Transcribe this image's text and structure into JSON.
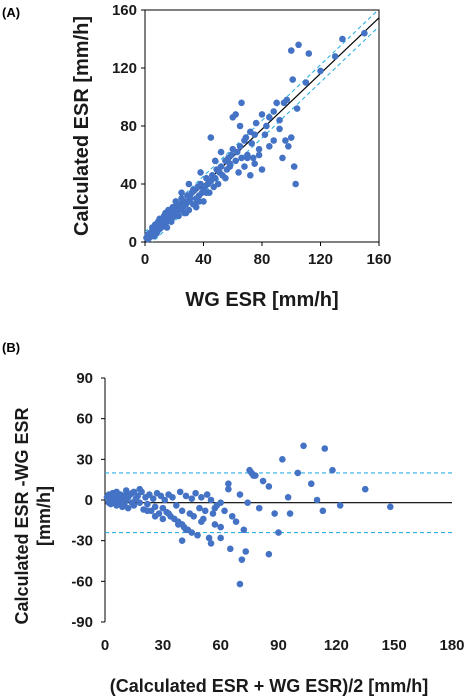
{
  "chart_data": [
    {
      "panel": "(A)",
      "type": "scatter",
      "xlabel": "WG ESR [mm/h]",
      "ylabel": "Calculated ESR [mm/h]",
      "xlim": [
        0,
        160
      ],
      "ylim": [
        0,
        160
      ],
      "xticks": [
        "0",
        "40",
        "80",
        "120",
        "160"
      ],
      "yticks": [
        "0",
        "40",
        "80",
        "120",
        "160"
      ],
      "grid": false,
      "point_color": "#4472c4",
      "regression_line": {
        "slope": 0.96,
        "intercept": 1,
        "color": "#000000"
      },
      "confidence_band": {
        "offset": 6,
        "color": "#2eb0e0",
        "style": "dashed"
      },
      "series": [
        {
          "x": [
            1,
            2,
            2,
            3,
            3,
            3,
            4,
            4,
            5,
            5,
            5,
            6,
            6,
            6,
            7,
            7,
            8,
            8,
            9,
            9,
            10,
            10,
            10,
            11,
            11,
            12,
            12,
            13,
            13,
            14,
            14,
            15,
            15,
            15,
            16,
            16,
            17,
            17,
            18,
            18,
            19,
            19,
            20,
            20,
            21,
            22,
            22,
            23,
            23,
            24,
            25,
            25,
            26,
            27,
            27,
            28,
            29,
            30,
            30,
            31,
            32,
            33,
            34,
            35,
            35,
            36,
            37,
            37,
            38,
            39,
            40,
            40,
            41,
            42,
            43,
            44,
            45,
            46,
            47,
            48,
            49,
            50,
            51,
            52,
            53,
            55,
            56,
            57,
            58,
            59,
            60,
            62,
            63,
            64,
            65,
            66,
            68,
            69,
            70,
            72,
            73,
            75,
            76,
            78,
            80,
            82,
            83,
            85,
            88,
            90,
            92,
            94,
            96,
            98,
            100,
            101,
            102,
            103,
            104,
            105,
            68,
            70,
            72,
            75,
            78,
            80,
            85,
            88,
            92,
            95,
            97,
            100,
            110,
            112,
            120,
            130,
            135,
            150,
            60,
            65,
            48,
            52,
            55,
            58,
            30,
            33,
            36,
            25,
            28,
            22,
            45,
            42,
            38,
            62,
            66,
            74
          ],
          "y": [
            3,
            2,
            5,
            4,
            6,
            3,
            6,
            4,
            8,
            5,
            10,
            7,
            9,
            4,
            8,
            12,
            10,
            6,
            14,
            8,
            12,
            9,
            16,
            13,
            10,
            14,
            11,
            18,
            12,
            16,
            20,
            14,
            18,
            10,
            16,
            22,
            15,
            19,
            20,
            14,
            17,
            24,
            18,
            22,
            28,
            20,
            25,
            23,
            18,
            26,
            22,
            30,
            24,
            28,
            20,
            26,
            32,
            28,
            22,
            30,
            34,
            26,
            36,
            30,
            24,
            38,
            32,
            28,
            40,
            34,
            36,
            28,
            38,
            44,
            40,
            34,
            42,
            46,
            38,
            44,
            50,
            40,
            48,
            52,
            46,
            56,
            50,
            58,
            54,
            60,
            64,
            56,
            62,
            48,
            66,
            58,
            70,
            72,
            60,
            76,
            68,
            74,
            82,
            64,
            88,
            74,
            80,
            86,
            90,
            96,
            78,
            58,
            70,
            66,
            132,
            112,
            52,
            40,
            92,
            136,
            52,
            58,
            46,
            54,
            60,
            50,
            66,
            70,
            84,
            96,
            98,
            72,
            110,
            130,
            118,
            128,
            140,
            144,
            86,
            80,
            56,
            62,
            44,
            52,
            40,
            36,
            28,
            34,
            20,
            26,
            72,
            34,
            48,
            88,
            96,
            58
          ]
        }
      ]
    },
    {
      "panel": "(B)",
      "type": "scatter",
      "xlabel": "(Calculated ESR + WG ESR)/2 [mm/h]",
      "ylabel": "Calculated ESR -WG ESR [mm/h]",
      "xlim": [
        0,
        180
      ],
      "ylim": [
        -90,
        90
      ],
      "xticks": [
        "0",
        "30",
        "60",
        "90",
        "120",
        "150",
        "180"
      ],
      "yticks": [
        "90",
        "60",
        "30",
        "0",
        "-30",
        "-60",
        "-90"
      ],
      "grid": false,
      "point_color": "#4472c4",
      "mean_line": {
        "value": -2,
        "color": "#000000"
      },
      "limits_of_agreement": {
        "upper": 20,
        "lower": -24,
        "color": "#2eb0e0",
        "style": "dashed"
      },
      "series": [
        {
          "x": [
            1,
            2,
            2,
            3,
            3,
            4,
            4,
            5,
            5,
            6,
            6,
            7,
            7,
            8,
            8,
            9,
            9,
            10,
            10,
            11,
            11,
            12,
            12,
            13,
            14,
            14,
            15,
            16,
            17,
            18,
            19,
            20,
            21,
            22,
            23,
            24,
            25,
            26,
            27,
            28,
            29,
            30,
            31,
            32,
            33,
            34,
            35,
            36,
            37,
            38,
            39,
            40,
            40,
            41,
            42,
            43,
            44,
            45,
            46,
            47,
            48,
            49,
            50,
            51,
            52,
            53,
            54,
            55,
            56,
            57,
            58,
            60,
            62,
            64,
            66,
            68,
            70,
            72,
            74,
            76,
            78,
            80,
            82,
            85,
            88,
            92,
            96,
            100,
            103,
            107,
            110,
            113,
            114,
            118,
            122,
            135,
            148,
            70,
            71,
            73,
            75,
            77,
            40,
            45,
            55,
            60,
            65,
            38,
            42,
            50,
            26,
            30,
            33,
            18,
            22,
            15,
            12,
            85,
            90,
            95,
            64,
            60,
            57
          ],
          "y": [
            2,
            -2,
            4,
            0,
            -3,
            5,
            1,
            -1,
            3,
            -4,
            6,
            2,
            -2,
            4,
            -1,
            1,
            -5,
            3,
            -3,
            7,
            0,
            2,
            -6,
            4,
            -2,
            5,
            -4,
            1,
            3,
            -2,
            6,
            -7,
            2,
            -3,
            4,
            -8,
            1,
            -5,
            5,
            -10,
            3,
            -6,
            0,
            -9,
            4,
            -12,
            2,
            -14,
            -4,
            -16,
            6,
            -18,
            -8,
            -20,
            3,
            -22,
            -10,
            1,
            -12,
            5,
            -26,
            -6,
            2,
            -14,
            -8,
            4,
            -28,
            0,
            -10,
            -18,
            -4,
            -20,
            -8,
            8,
            -12,
            -16,
            4,
            -22,
            -2,
            20,
            18,
            -6,
            14,
            10,
            -10,
            30,
            -10,
            20,
            40,
            12,
            0,
            -8,
            38,
            22,
            -4,
            8,
            -5,
            -62,
            -44,
            -38,
            22,
            18,
            -30,
            -24,
            -32,
            -28,
            -36,
            -18,
            -22,
            -16,
            -12,
            -14,
            -10,
            8,
            -8,
            6,
            4,
            -40,
            -24,
            2,
            12,
            -2,
            -6
          ]
        }
      ]
    }
  ]
}
